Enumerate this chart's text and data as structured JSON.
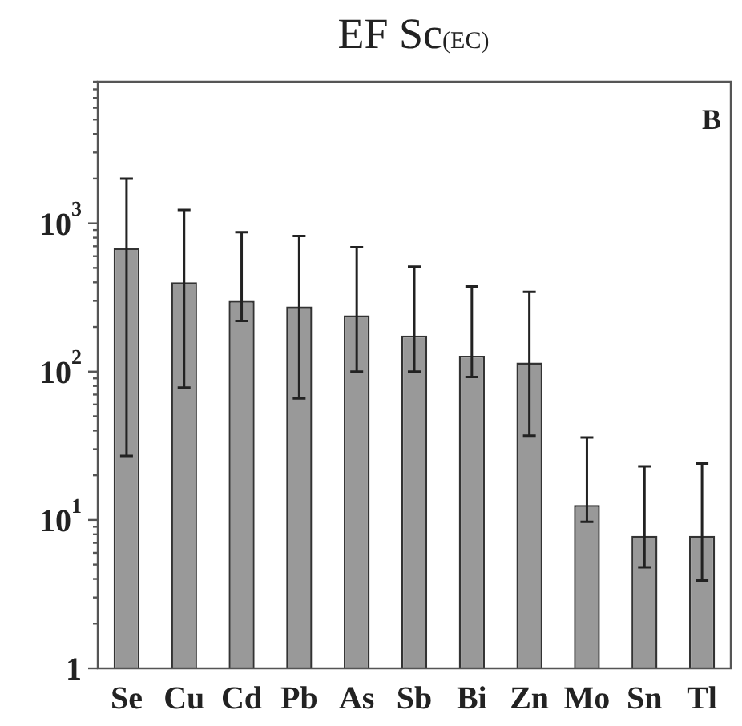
{
  "chart_data": {
    "type": "bar",
    "title": "EF Sc$_{(EC)}$",
    "categories": [
      "Se",
      "Cu",
      "Cd",
      "Pb",
      "As",
      "Sb",
      "Bi",
      "Zn",
      "Mo",
      "Sn",
      "Tl"
    ],
    "values": [
      680,
      400,
      300,
      275,
      240,
      175,
      128,
      115,
      12.6,
      7.8,
      7.8
    ],
    "errors": [
      [
        27,
        2000
      ],
      [
        78,
        1230
      ],
      [
        220,
        870
      ],
      [
        66,
        820
      ],
      [
        100,
        690
      ],
      [
        100,
        510
      ],
      [
        92,
        375
      ],
      [
        37,
        345
      ],
      [
        9.7,
        36
      ],
      [
        4.8,
        23
      ],
      [
        3.9,
        24
      ]
    ],
    "color": "#999999",
    "log": "y",
    "ylim": [
      1,
      9000
    ],
    "yticks": [
      {
        "value": 1,
        "label": "1"
      },
      {
        "value": 2,
        "label": null
      },
      {
        "value": 3,
        "label": null
      },
      {
        "value": 4,
        "label": null
      },
      {
        "value": 5,
        "label": null
      },
      {
        "value": 6,
        "label": null
      },
      {
        "value": 7,
        "label": null
      },
      {
        "value": 8,
        "label": null
      },
      {
        "value": 9,
        "label": null
      },
      {
        "value": 10,
        "label": "10$^{1}$"
      },
      {
        "value": 20,
        "label": null
      },
      {
        "value": 30,
        "label": null
      },
      {
        "value": 40,
        "label": null
      },
      {
        "value": 50,
        "label": null
      },
      {
        "value": 60,
        "label": null
      },
      {
        "value": 70,
        "label": null
      },
      {
        "value": 80,
        "label": null
      },
      {
        "value": 90,
        "label": null
      },
      {
        "value": 100,
        "label": "10$^{2}$"
      },
      {
        "value": 200,
        "label": null
      },
      {
        "value": 300,
        "label": null
      },
      {
        "value": 400,
        "label": null
      },
      {
        "value": 500,
        "label": null
      },
      {
        "value": 600,
        "label": null
      },
      {
        "value": 700,
        "label": null
      },
      {
        "value": 800,
        "label": null
      },
      {
        "value": 900,
        "label": null
      },
      {
        "value": 1000,
        "label": "10$^{3}$"
      },
      {
        "value": 2000,
        "label": null
      },
      {
        "value": 3000,
        "label": null
      },
      {
        "value": 4000,
        "label": null
      },
      {
        "value": 5000,
        "label": null
      },
      {
        "value": 6000,
        "label": null
      },
      {
        "value": 7000,
        "label": null
      },
      {
        "value": 8000,
        "label": null
      },
      {
        "value": 9000,
        "label": null
      }
    ],
    "grid": false,
    "legend": false,
    "annotations": [
      "B"
    ]
  }
}
